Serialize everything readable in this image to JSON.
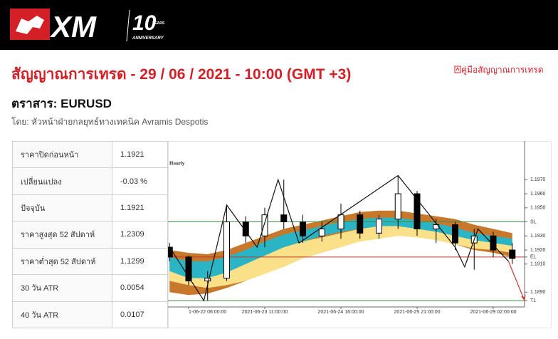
{
  "header": {
    "logo": "XM",
    "anniversary_number": "10",
    "anniversary_years": "YEARS",
    "anniversary_text": "ANNIVERSARY",
    "guide_link": "คู่มือสัญญาณการเทรด"
  },
  "title": "สัญญาณการเทรด - 29 / 06 / 2021 - 10:00 (GMT +3)",
  "instrument": "ตราสาร: EURUSD",
  "author": "โดย: หัวหน้าฝ่ายกลยุทธ์ทางเทคนิค Avramis Despotis",
  "table": {
    "rows": [
      [
        "ราคาปิดก่อนหน้า",
        "1.1921"
      ],
      [
        "เปลี่ยนแปลง",
        "-0.03 %"
      ],
      [
        "ปัจจุบัน",
        "1.1921"
      ],
      [
        "ราคาสูงสุด 52 สัปดาห์",
        "1.2309"
      ],
      [
        "ราคาต่ำสุด 52 สัปดาห์",
        "1.1299"
      ],
      [
        "30 วัน ATR",
        "0.0054"
      ],
      [
        "40 วัน ATR",
        "0.0107"
      ]
    ]
  },
  "chart_data": {
    "type": "candlestick",
    "title": "Hourly",
    "categories": [
      null,
      "1-06-22 06:00:00",
      null,
      null,
      null,
      "2021-06-23 11:00:00",
      null,
      null,
      null,
      "2021-06-24 16:00:00",
      null,
      null,
      null,
      "2021-06-25 21:00:00",
      null,
      null,
      null,
      "2021-06-29 02:00:00",
      null
    ],
    "open": [
      1.1922,
      1.1915,
      1.1898,
      1.19,
      1.194,
      1.193,
      1.1945,
      1.194,
      1.193,
      1.1935,
      1.1945,
      1.1932,
      1.1942,
      1.196,
      1.1935,
      1.1938,
      1.1925,
      1.193,
      1.192
    ],
    "high": [
      1.1925,
      1.1916,
      1.1905,
      1.1952,
      1.1944,
      1.195,
      1.197,
      1.1945,
      1.194,
      1.1953,
      1.1948,
      1.1945,
      1.1973,
      1.1962,
      1.1942,
      1.194,
      1.1935,
      1.1933,
      1.1925
    ],
    "low": [
      1.1912,
      1.1895,
      1.1884,
      1.1898,
      1.1925,
      1.1922,
      1.1935,
      1.1925,
      1.1926,
      1.1928,
      1.1928,
      1.1928,
      1.1935,
      1.193,
      1.1925,
      1.192,
      1.1906,
      1.1915,
      1.191
    ],
    "close": [
      1.1915,
      1.1898,
      1.19,
      1.194,
      1.193,
      1.1945,
      1.194,
      1.193,
      1.1935,
      1.1945,
      1.1932,
      1.1942,
      1.196,
      1.1935,
      1.1938,
      1.1925,
      1.193,
      1.192,
      1.1914
    ],
    "up_color": "#ffffff",
    "down_color": "#000000",
    "ylim": [
      1.188,
      1.1997
    ],
    "yticks": [
      {
        "value": 1.197,
        "label": "1.1970"
      },
      {
        "value": 1.196,
        "label": "1.1960"
      },
      {
        "value": 1.195,
        "label": "1.1950"
      },
      {
        "value": 1.193,
        "label": "1.1930"
      },
      {
        "value": 1.192,
        "label": "1.1920"
      },
      {
        "value": 1.191,
        "label": "1.1910"
      },
      {
        "value": 1.189,
        "label": "1.1890"
      }
    ],
    "bands": [
      {
        "color": "#c8782a",
        "upper": [
          1.192,
          1.1918,
          1.1917,
          1.192,
          1.1925,
          1.193,
          1.1935,
          1.1938,
          1.1941,
          1.1944,
          1.1947,
          1.1948,
          1.1948,
          1.1946,
          1.1944,
          1.1942,
          1.1938,
          1.1935,
          1.1932
        ],
        "lower": [
          1.189,
          1.1888,
          1.1889,
          1.1893,
          1.1898,
          1.1905,
          1.1912,
          1.1918,
          1.1922,
          1.1925,
          1.1928,
          1.193,
          1.1932,
          1.193,
          1.1928,
          1.1924,
          1.192,
          1.1918,
          1.1915
        ]
      },
      {
        "color": "#fbe08a",
        "upper": [
          1.191,
          1.1907,
          1.1906,
          1.1908,
          1.1912,
          1.1917,
          1.1922,
          1.1926,
          1.1929,
          1.1932,
          1.1935,
          1.1937,
          1.1938,
          1.1937,
          1.1935,
          1.1932,
          1.1929,
          1.1927,
          1.1925
        ],
        "lower": [
          1.1898,
          1.1895,
          1.1893,
          1.1895,
          1.1898,
          1.1903,
          1.1908,
          1.1914,
          1.1918,
          1.1922,
          1.1926,
          1.1928,
          1.193,
          1.1929,
          1.1927,
          1.1924,
          1.1921,
          1.192,
          1.1918
        ]
      },
      {
        "color": "#2bb5c4",
        "upper": [
          1.1915,
          1.1912,
          1.1912,
          1.1915,
          1.192,
          1.1926,
          1.1931,
          1.1934,
          1.1937,
          1.194,
          1.1942,
          1.1943,
          1.1943,
          1.1941,
          1.1939,
          1.1936,
          1.1932,
          1.193,
          1.1928
        ],
        "lower": [
          1.1905,
          1.19,
          1.19,
          1.1904,
          1.191,
          1.1916,
          1.1922,
          1.1926,
          1.193,
          1.1933,
          1.1935,
          1.1937,
          1.1937,
          1.1935,
          1.1933,
          1.193,
          1.1927,
          1.1925,
          1.1923
        ]
      }
    ],
    "zigzag": {
      "color": "#111111",
      "x": [
        0,
        1.8,
        3,
        4.6,
        5.7,
        6.8,
        12,
        15,
        15.5,
        16.2,
        17.8
      ],
      "values": [
        1.1922,
        1.1884,
        1.1952,
        1.1922,
        1.197,
        1.1925,
        1.1973,
        1.1922,
        1.1908,
        1.1935,
        1.1912
      ]
    },
    "levels": [
      {
        "label": "SL",
        "value": 1.194,
        "color": "#3a8f3a"
      },
      {
        "label": "EL",
        "value": 1.1915,
        "color": "#c0392b"
      },
      {
        "label": "T1",
        "value": 1.1884,
        "color": "#3a8f3a"
      }
    ]
  }
}
